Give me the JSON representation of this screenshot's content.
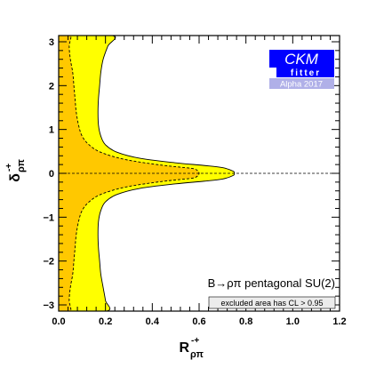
{
  "chart_data": {
    "type": "contour",
    "xlabel": {
      "main": "R",
      "sup": "-+",
      "sub": "ρπ"
    },
    "ylabel": {
      "main": "δ",
      "sup": "-+",
      "sub": "ρπ"
    },
    "xlim": [
      0.0,
      1.2
    ],
    "ylim": [
      -3.14159,
      3.14159
    ],
    "xticks": [
      {
        "v": 0.0,
        "label": "0.0"
      },
      {
        "v": 0.2,
        "label": "0.2"
      },
      {
        "v": 0.4,
        "label": "0.4"
      },
      {
        "v": 0.6,
        "label": "0.6"
      },
      {
        "v": 0.8,
        "label": "0.8"
      },
      {
        "v": 1.0,
        "label": "1.0"
      },
      {
        "v": 1.2,
        "label": "1.2"
      }
    ],
    "yticks": [
      {
        "v": -3,
        "label": "−3"
      },
      {
        "v": -2,
        "label": "−2"
      },
      {
        "v": -1,
        "label": "−1"
      },
      {
        "v": 0,
        "label": "0"
      },
      {
        "v": 1,
        "label": "1"
      },
      {
        "v": 2,
        "label": "2"
      },
      {
        "v": 3,
        "label": "3"
      }
    ],
    "reference_line": {
      "y": 0,
      "style": "dashed"
    },
    "regions": [
      {
        "name": "outer",
        "fill": "#ffff00",
        "outline": "solid",
        "boundary": [
          [
            0.0,
            3.14159
          ],
          [
            0.23,
            3.14159
          ],
          [
            0.21,
            2.9
          ],
          [
            0.19,
            2.6
          ],
          [
            0.18,
            2.3
          ],
          [
            0.175,
            2.0
          ],
          [
            0.17,
            1.7
          ],
          [
            0.168,
            1.4
          ],
          [
            0.17,
            1.1
          ],
          [
            0.18,
            0.85
          ],
          [
            0.2,
            0.65
          ],
          [
            0.25,
            0.48
          ],
          [
            0.35,
            0.34
          ],
          [
            0.5,
            0.24
          ],
          [
            0.62,
            0.18
          ],
          [
            0.7,
            0.13
          ],
          [
            0.745,
            0.05
          ],
          [
            0.75,
            0.0
          ],
          [
            0.745,
            -0.05
          ],
          [
            0.7,
            -0.13
          ],
          [
            0.62,
            -0.18
          ],
          [
            0.5,
            -0.24
          ],
          [
            0.35,
            -0.34
          ],
          [
            0.25,
            -0.48
          ],
          [
            0.2,
            -0.65
          ],
          [
            0.18,
            -0.85
          ],
          [
            0.17,
            -1.1
          ],
          [
            0.168,
            -1.4
          ],
          [
            0.17,
            -1.7
          ],
          [
            0.175,
            -2.0
          ],
          [
            0.18,
            -2.3
          ],
          [
            0.19,
            -2.6
          ],
          [
            0.2,
            -2.9
          ],
          [
            0.205,
            -3.14159
          ],
          [
            0.0,
            -3.14159
          ]
        ]
      },
      {
        "name": "inner",
        "fill": "#ffc800",
        "outline": "dashed",
        "boundary": [
          [
            0.0,
            3.14159
          ],
          [
            0.05,
            3.14159
          ],
          [
            0.045,
            2.9
          ],
          [
            0.05,
            2.6
          ],
          [
            0.06,
            2.3
          ],
          [
            0.065,
            2.0
          ],
          [
            0.07,
            1.7
          ],
          [
            0.075,
            1.4
          ],
          [
            0.085,
            1.1
          ],
          [
            0.1,
            0.85
          ],
          [
            0.13,
            0.65
          ],
          [
            0.18,
            0.48
          ],
          [
            0.28,
            0.32
          ],
          [
            0.42,
            0.2
          ],
          [
            0.52,
            0.14
          ],
          [
            0.58,
            0.1
          ],
          [
            0.6,
            0.0
          ],
          [
            0.58,
            -0.1
          ],
          [
            0.52,
            -0.14
          ],
          [
            0.42,
            -0.2
          ],
          [
            0.28,
            -0.32
          ],
          [
            0.18,
            -0.48
          ],
          [
            0.13,
            -0.65
          ],
          [
            0.1,
            -0.85
          ],
          [
            0.085,
            -1.1
          ],
          [
            0.075,
            -1.4
          ],
          [
            0.07,
            -1.7
          ],
          [
            0.065,
            -2.0
          ],
          [
            0.06,
            -2.3
          ],
          [
            0.05,
            -2.6
          ],
          [
            0.045,
            -2.9
          ],
          [
            0.05,
            -3.14159
          ],
          [
            0.0,
            -3.14159
          ]
        ]
      }
    ],
    "annotation": "B→ρπ pentagonal SU(2)",
    "cl_note": "excluded area has CL > 0.95",
    "logo": {
      "line1": "CKM",
      "line2": "fitter",
      "line3": "Alpha 2017"
    },
    "colors": {
      "outer": "#ffff00",
      "inner": "#ffc800",
      "logo_blue": "#0000ff",
      "logo_lavender": "#b0b0e8"
    }
  }
}
